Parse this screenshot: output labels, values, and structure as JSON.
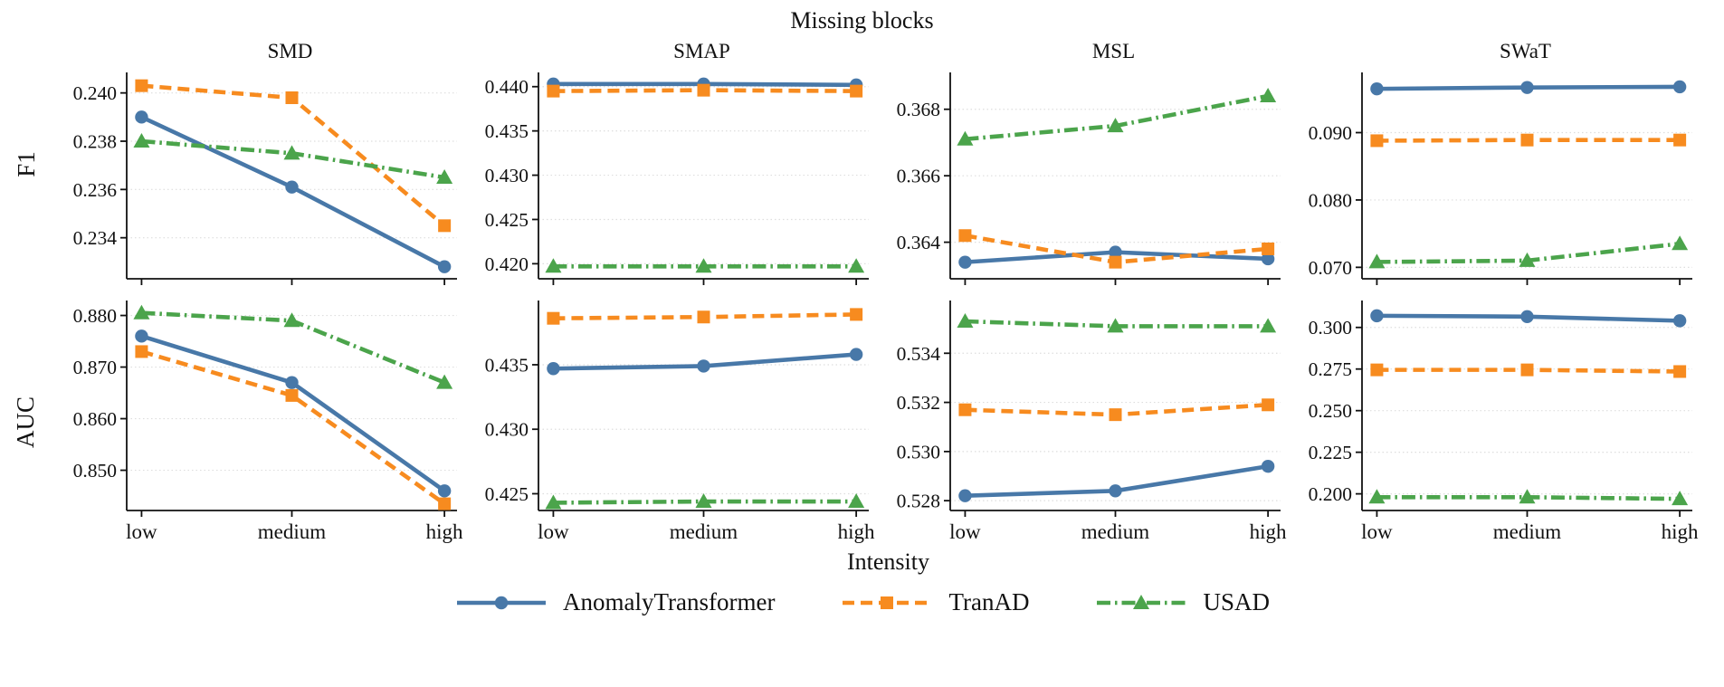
{
  "figure": {
    "title": "Missing blocks",
    "xlabel": "Intensity",
    "row_labels": [
      "F1",
      "AUC"
    ],
    "col_labels": [
      "SMD",
      "SMAP",
      "MSL",
      "SWaT"
    ]
  },
  "legend": {
    "items": [
      {
        "label": "AnomalyTransformer",
        "color": "#4878A8",
        "marker": "circle",
        "dash": "solid"
      },
      {
        "label": "TranAD",
        "color": "#F78B1F",
        "marker": "square",
        "dash": "dashed"
      },
      {
        "label": "USAD",
        "color": "#4BA44B",
        "marker": "triangle",
        "dash": "dashdot"
      }
    ]
  },
  "chart_data": [
    {
      "type": "line",
      "dataset": "SMD",
      "metric": "F1",
      "row": 0,
      "col": 0,
      "categories": [
        "low",
        "medium",
        "high"
      ],
      "yticks": [
        0.234,
        0.236,
        0.238,
        0.24
      ],
      "ylim": [
        0.2323,
        0.2407
      ],
      "series": [
        {
          "name": "AnomalyTransformer",
          "values": [
            0.239,
            0.2361,
            0.2328
          ]
        },
        {
          "name": "TranAD",
          "values": [
            0.2403,
            0.2398,
            0.2345
          ]
        },
        {
          "name": "USAD",
          "values": [
            0.238,
            0.2375,
            0.2365
          ]
        }
      ]
    },
    {
      "type": "line",
      "dataset": "SMAP",
      "metric": "F1",
      "row": 0,
      "col": 1,
      "categories": [
        "low",
        "medium",
        "high"
      ],
      "yticks": [
        0.42,
        0.425,
        0.43,
        0.435,
        0.44
      ],
      "ylim": [
        0.4183,
        0.4412
      ],
      "series": [
        {
          "name": "AnomalyTransformer",
          "values": [
            0.4403,
            0.4403,
            0.4402
          ]
        },
        {
          "name": "TranAD",
          "values": [
            0.4395,
            0.4396,
            0.4395
          ]
        },
        {
          "name": "USAD",
          "values": [
            0.4197,
            0.4197,
            0.4197
          ]
        }
      ]
    },
    {
      "type": "line",
      "dataset": "MSL",
      "metric": "F1",
      "row": 0,
      "col": 2,
      "categories": [
        "low",
        "medium",
        "high"
      ],
      "yticks": [
        0.364,
        0.366,
        0.368
      ],
      "ylim": [
        0.3629,
        0.369
      ],
      "series": [
        {
          "name": "AnomalyTransformer",
          "values": [
            0.3634,
            0.3637,
            0.3635
          ]
        },
        {
          "name": "TranAD",
          "values": [
            0.3642,
            0.3634,
            0.3638
          ]
        },
        {
          "name": "USAD",
          "values": [
            0.3671,
            0.3675,
            0.3684
          ]
        }
      ]
    },
    {
      "type": "line",
      "dataset": "SWaT",
      "metric": "F1",
      "row": 0,
      "col": 3,
      "categories": [
        "low",
        "medium",
        "high"
      ],
      "yticks": [
        0.07,
        0.08,
        0.09
      ],
      "ylim": [
        0.0683,
        0.0984
      ],
      "series": [
        {
          "name": "AnomalyTransformer",
          "values": [
            0.0965,
            0.0967,
            0.0968
          ]
        },
        {
          "name": "TranAD",
          "values": [
            0.0888,
            0.0889,
            0.0889
          ]
        },
        {
          "name": "USAD",
          "values": [
            0.0708,
            0.071,
            0.0735
          ]
        }
      ]
    },
    {
      "type": "line",
      "dataset": "SMD",
      "metric": "AUC",
      "row": 1,
      "col": 0,
      "categories": [
        "low",
        "medium",
        "high"
      ],
      "yticks": [
        0.85,
        0.86,
        0.87,
        0.88
      ],
      "ylim": [
        0.8422,
        0.8822
      ],
      "series": [
        {
          "name": "AnomalyTransformer",
          "values": [
            0.876,
            0.867,
            0.846
          ]
        },
        {
          "name": "TranAD",
          "values": [
            0.873,
            0.8645,
            0.8435
          ]
        },
        {
          "name": "USAD",
          "values": [
            0.8805,
            0.879,
            0.867
          ]
        }
      ]
    },
    {
      "type": "line",
      "dataset": "SMAP",
      "metric": "AUC",
      "row": 1,
      "col": 1,
      "categories": [
        "low",
        "medium",
        "high"
      ],
      "yticks": [
        0.425,
        0.43,
        0.435
      ],
      "ylim": [
        0.4237,
        0.4397
      ],
      "series": [
        {
          "name": "AnomalyTransformer",
          "values": [
            0.4347,
            0.4349,
            0.4358
          ]
        },
        {
          "name": "TranAD",
          "values": [
            0.4386,
            0.4387,
            0.4389
          ]
        },
        {
          "name": "USAD",
          "values": [
            0.4243,
            0.4244,
            0.4244
          ]
        }
      ]
    },
    {
      "type": "line",
      "dataset": "MSL",
      "metric": "AUC",
      "row": 1,
      "col": 2,
      "categories": [
        "low",
        "medium",
        "high"
      ],
      "yticks": [
        0.528,
        0.53,
        0.532,
        0.534
      ],
      "ylim": [
        0.5276,
        0.536
      ],
      "series": [
        {
          "name": "AnomalyTransformer",
          "values": [
            0.5282,
            0.5284,
            0.5294
          ]
        },
        {
          "name": "TranAD",
          "values": [
            0.5317,
            0.5315,
            0.5319
          ]
        },
        {
          "name": "USAD",
          "values": [
            0.5353,
            0.5351,
            0.5351
          ]
        }
      ]
    },
    {
      "type": "line",
      "dataset": "SWaT",
      "metric": "AUC",
      "row": 1,
      "col": 3,
      "categories": [
        "low",
        "medium",
        "high"
      ],
      "yticks": [
        0.2,
        0.225,
        0.25,
        0.275,
        0.3
      ],
      "ylim": [
        0.19,
        0.314
      ],
      "series": [
        {
          "name": "AnomalyTransformer",
          "values": [
            0.307,
            0.3065,
            0.304
          ]
        },
        {
          "name": "TranAD",
          "values": [
            0.2745,
            0.2745,
            0.2735
          ]
        },
        {
          "name": "USAD",
          "values": [
            0.198,
            0.198,
            0.197
          ]
        }
      ]
    }
  ]
}
